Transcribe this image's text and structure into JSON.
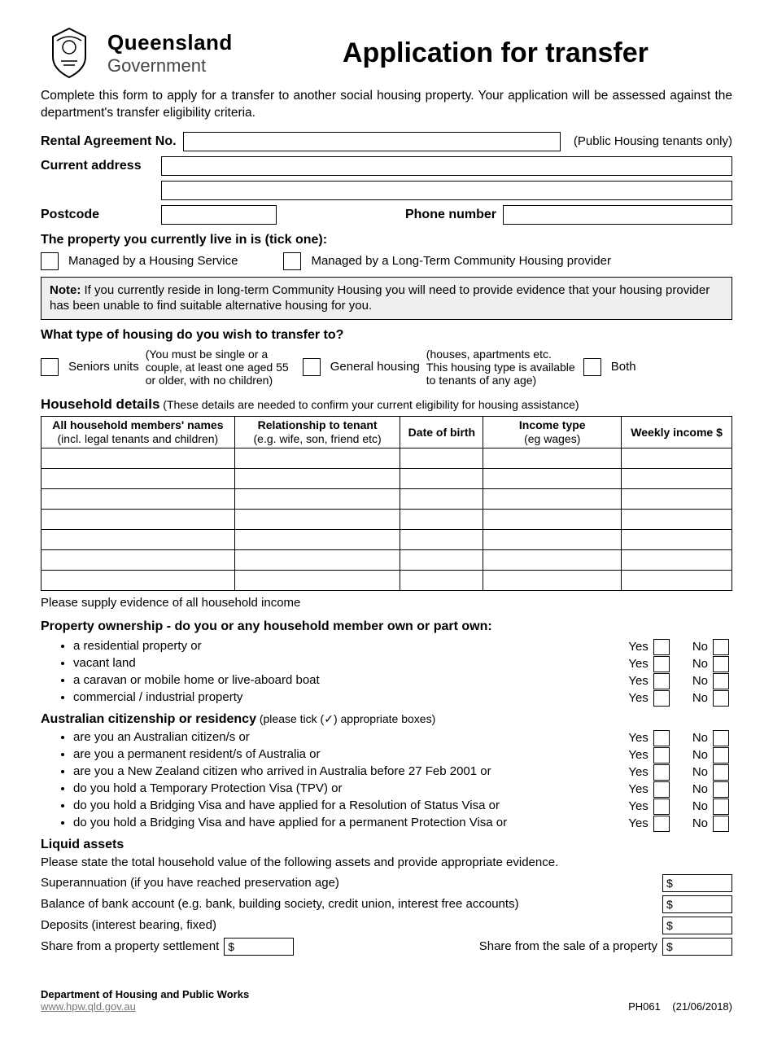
{
  "header": {
    "gov_line1": "Queensland",
    "gov_line2": "Government",
    "title": "Application for transfer"
  },
  "intro": "Complete this form to apply for a transfer to another social housing property. Your application will be assessed against the department's transfer eligibility criteria.",
  "fields": {
    "rental_label": "Rental Agreement No.",
    "rental_note": "(Public Housing tenants only)",
    "current_address_label": "Current address",
    "postcode_label": "Postcode",
    "phone_label": "Phone number"
  },
  "property_current": {
    "question": "The property you currently live in is (tick one):",
    "opt1": "Managed by a Housing Service",
    "opt2": "Managed by a Long-Term Community Housing provider"
  },
  "note": {
    "prefix": "Note:",
    "text": " If you currently reside in long-term Community Housing you will need to provide evidence that your housing provider has been unable to find suitable alternative housing for you."
  },
  "transfer_type": {
    "question": "What type of housing do you wish to transfer to?",
    "opt1": "Seniors units",
    "opt1_sub": "(You must be single or a\ncouple, at least one aged 55\nor older, with no children)",
    "opt2": "General housing",
    "opt2_sub": "(houses, apartments etc.\nThis housing type is available\nto tenants of any age)",
    "opt3": "Both"
  },
  "household": {
    "title": "Household details",
    "sub": " (These details are needed to confirm your current eligibility for housing assistance)",
    "columns": [
      {
        "main": "All household members' names",
        "sub": "(incl. legal tenants and children)"
      },
      {
        "main": "Relationship to tenant",
        "sub": "(e.g. wife, son, friend etc)"
      },
      {
        "main": "Date of birth",
        "sub": ""
      },
      {
        "main": "Income type",
        "sub": "(eg wages)"
      },
      {
        "main": "Weekly income $",
        "sub": ""
      }
    ],
    "row_count": 7,
    "evidence": "Please supply evidence of all household income"
  },
  "ownership": {
    "title": "Property ownership - do you or any household member own or part own:",
    "items": [
      "a residential property or",
      "vacant land",
      "a caravan or mobile home or live-aboard boat",
      "commercial / industrial property"
    ]
  },
  "citizenship": {
    "title": "Australian citizenship or residency",
    "sub": " (please tick (✓) appropriate boxes)",
    "items": [
      "are you an Australian citizen/s or",
      "are you a permanent resident/s of Australia or",
      "are you a New Zealand citizen who arrived in Australia before 27 Feb 2001 or",
      "do you hold a Temporary Protection Visa (TPV) or",
      "do you hold a Bridging Visa and have applied for a Resolution of Status Visa or",
      "do you hold a Bridging Visa and have applied for a permanent Protection Visa or"
    ]
  },
  "yn": {
    "yes": "Yes",
    "no": "No"
  },
  "liquid": {
    "title": "Liquid assets",
    "intro": "Please state the total household value of the following assets and provide appropriate evidence.",
    "rows": [
      "Superannuation (if you have reached preservation age)",
      "Balance of bank account (e.g. bank, building society, credit union, interest free accounts)",
      "Deposits (interest bearing, fixed)"
    ],
    "share1": "Share from a property settlement",
    "share2": "Share from the sale of a property",
    "dollar": "$"
  },
  "footer": {
    "dept": "Department of Housing and Public Works",
    "url": "www.hpw.qld.gov.au",
    "form_code": "PH061",
    "date": "(21/06/2018)"
  }
}
